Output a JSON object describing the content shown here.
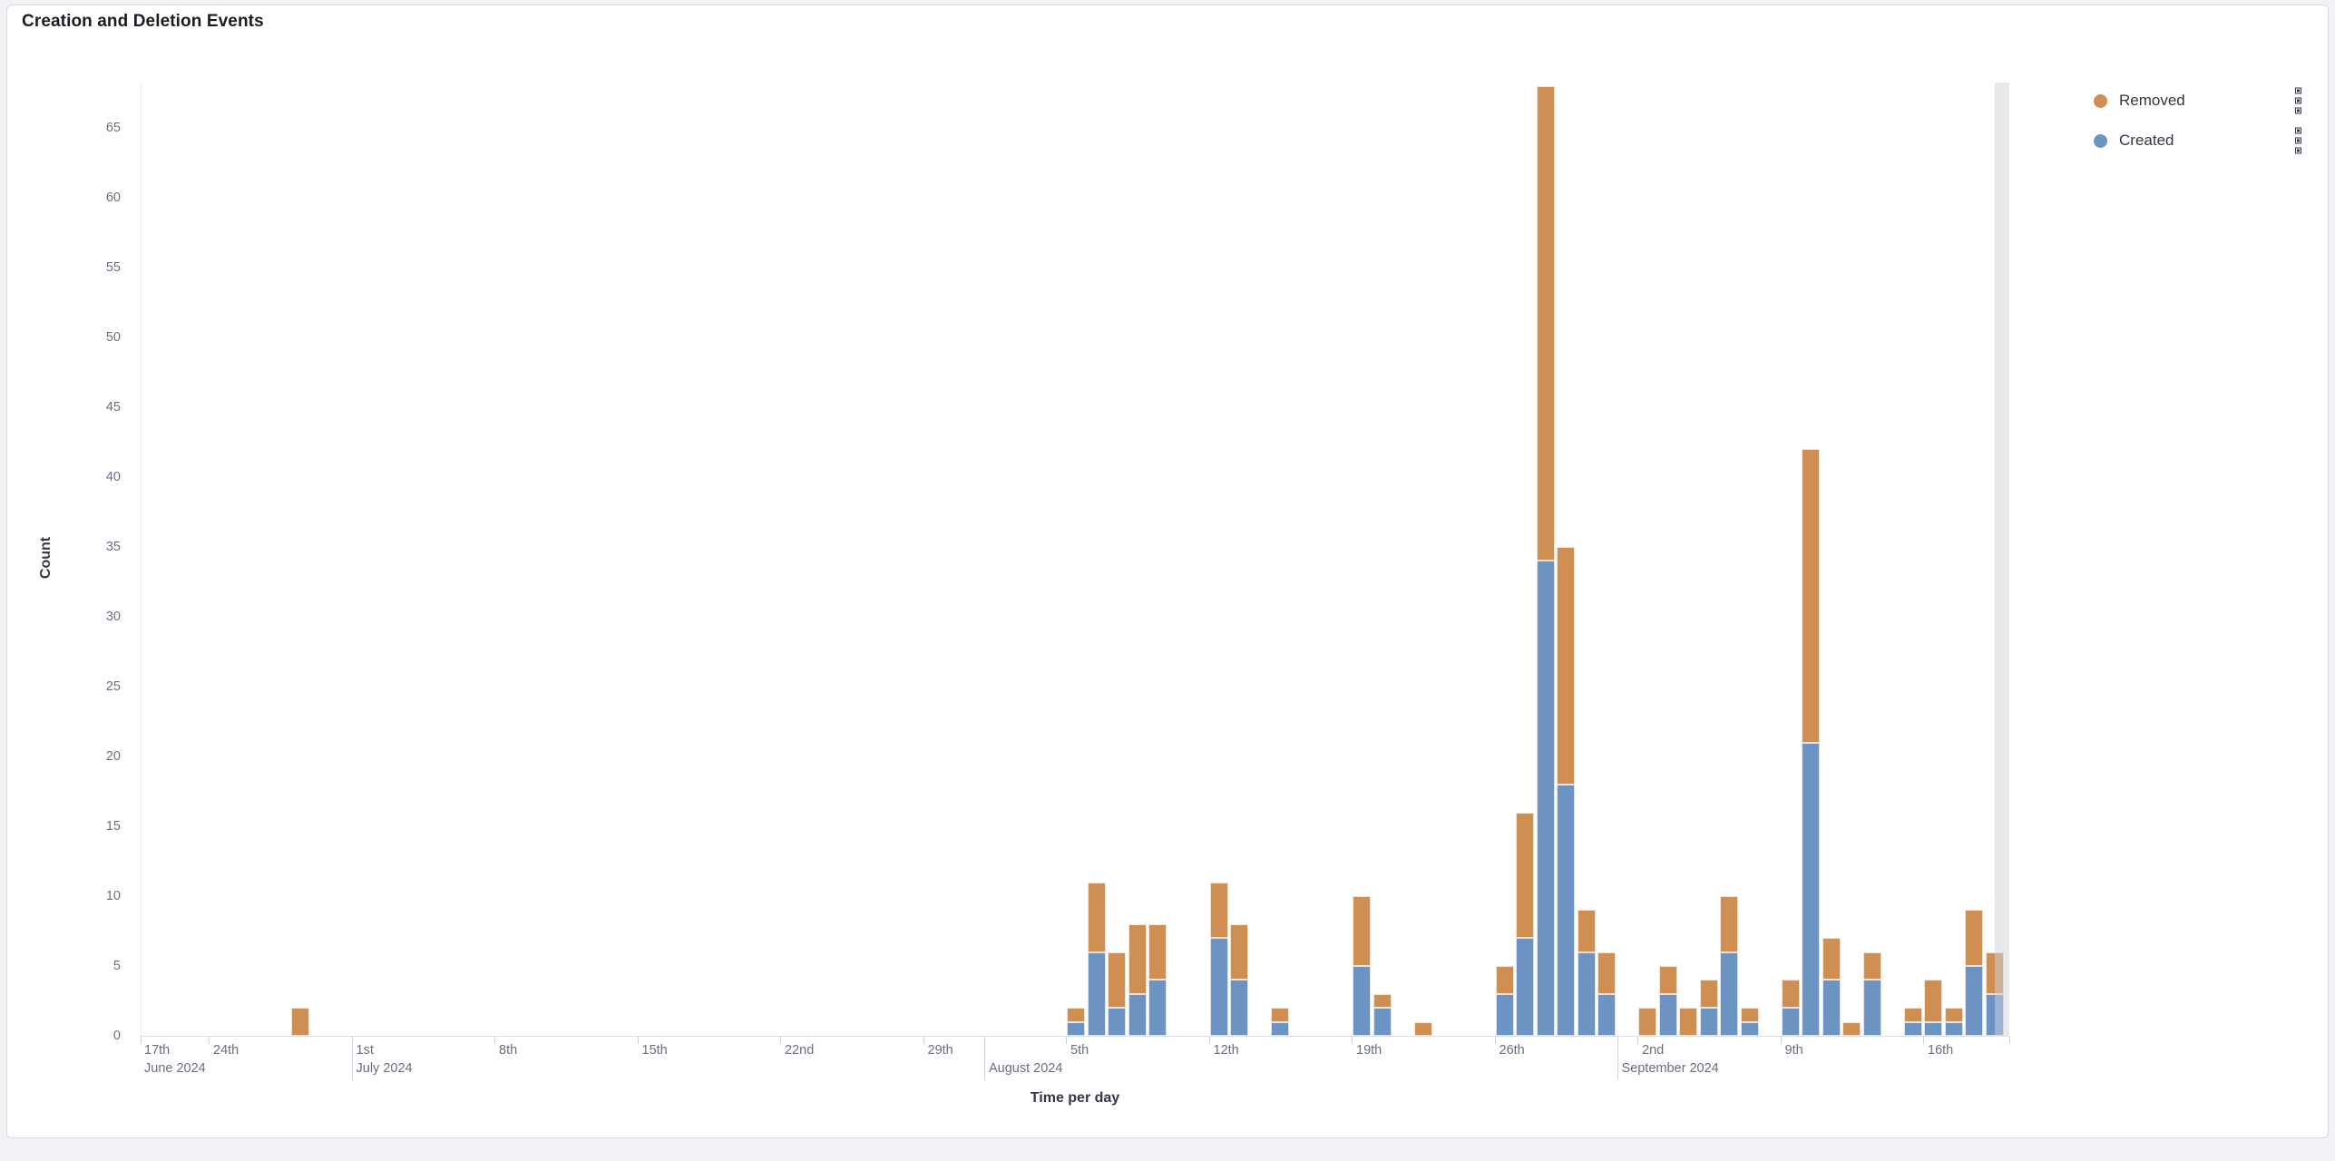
{
  "panel": {
    "title": "Creation and Deletion Events"
  },
  "legend": {
    "items": [
      {
        "label": "Removed",
        "color": "#cf8e52",
        "action_icon": "legend-action-icon"
      },
      {
        "label": "Created",
        "color": "#6d93c2",
        "action_icon": "legend-action-icon"
      }
    ]
  },
  "chart_data": {
    "type": "bar",
    "stacked": true,
    "title": "Creation and Deletion Events",
    "xlabel": "Time per day",
    "ylabel": "Count",
    "ylim": [
      0,
      68
    ],
    "grid": false,
    "legend_position": "right",
    "y_ticks": [
      0,
      5,
      10,
      15,
      20,
      25,
      30,
      35,
      40,
      45,
      50,
      55,
      60,
      65
    ],
    "series_colors": {
      "Created": "#6d93c2",
      "Removed": "#cf8e52"
    },
    "stack_order_bottom_to_top": [
      "Created",
      "Removed"
    ],
    "x_axis": {
      "pinned_first_label": {
        "label": "17th",
        "sub": "June 2024"
      },
      "week_ticks": [
        {
          "day": 0,
          "label": "24th"
        },
        {
          "day": 7,
          "label": "1st"
        },
        {
          "day": 14,
          "label": "8th"
        },
        {
          "day": 21,
          "label": "15th"
        },
        {
          "day": 28,
          "label": "22nd"
        },
        {
          "day": 35,
          "label": "29th"
        },
        {
          "day": 42,
          "label": "5th"
        },
        {
          "day": 49,
          "label": "12th"
        },
        {
          "day": 56,
          "label": "19th"
        },
        {
          "day": 63,
          "label": "26th"
        },
        {
          "day": 70,
          "label": "2nd"
        },
        {
          "day": 77,
          "label": "9th"
        },
        {
          "day": 84,
          "label": "16th"
        }
      ],
      "month_separators": [
        {
          "day": 7,
          "label": "July 2024"
        },
        {
          "day": 38,
          "label": "August 2024"
        },
        {
          "day": 69,
          "label": "September 2024"
        }
      ]
    },
    "bars": [
      {
        "date": "2024-06-28",
        "day": 4,
        "created": 0,
        "removed": 2
      },
      {
        "date": "2024-08-05",
        "day": 42,
        "created": 1,
        "removed": 1
      },
      {
        "date": "2024-08-06",
        "day": 43,
        "created": 6,
        "removed": 5
      },
      {
        "date": "2024-08-07",
        "day": 44,
        "created": 2,
        "removed": 4
      },
      {
        "date": "2024-08-08",
        "day": 45,
        "created": 3,
        "removed": 5
      },
      {
        "date": "2024-08-09",
        "day": 46,
        "created": 4,
        "removed": 4
      },
      {
        "date": "2024-08-12",
        "day": 49,
        "created": 7,
        "removed": 4
      },
      {
        "date": "2024-08-13",
        "day": 50,
        "created": 4,
        "removed": 4
      },
      {
        "date": "2024-08-15",
        "day": 52,
        "created": 1,
        "removed": 1
      },
      {
        "date": "2024-08-19",
        "day": 56,
        "created": 5,
        "removed": 5
      },
      {
        "date": "2024-08-20",
        "day": 57,
        "created": 2,
        "removed": 1
      },
      {
        "date": "2024-08-22",
        "day": 59,
        "created": 0,
        "removed": 1
      },
      {
        "date": "2024-08-26",
        "day": 63,
        "created": 3,
        "removed": 2
      },
      {
        "date": "2024-08-27",
        "day": 64,
        "created": 7,
        "removed": 9
      },
      {
        "date": "2024-08-28",
        "day": 65,
        "created": 34,
        "removed": 34
      },
      {
        "date": "2024-08-29",
        "day": 66,
        "created": 18,
        "removed": 17
      },
      {
        "date": "2024-08-30",
        "day": 67,
        "created": 6,
        "removed": 3
      },
      {
        "date": "2024-08-31",
        "day": 68,
        "created": 3,
        "removed": 3
      },
      {
        "date": "2024-09-02",
        "day": 70,
        "created": 0,
        "removed": 2
      },
      {
        "date": "2024-09-03",
        "day": 71,
        "created": 3,
        "removed": 2
      },
      {
        "date": "2024-09-04",
        "day": 72,
        "created": 0,
        "removed": 2
      },
      {
        "date": "2024-09-05",
        "day": 73,
        "created": 2,
        "removed": 2
      },
      {
        "date": "2024-09-06",
        "day": 74,
        "created": 6,
        "removed": 4
      },
      {
        "date": "2024-09-07",
        "day": 75,
        "created": 1,
        "removed": 1
      },
      {
        "date": "2024-09-09",
        "day": 77,
        "created": 2,
        "removed": 2
      },
      {
        "date": "2024-09-10",
        "day": 78,
        "created": 21,
        "removed": 21
      },
      {
        "date": "2024-09-11",
        "day": 79,
        "created": 4,
        "removed": 3
      },
      {
        "date": "2024-09-12",
        "day": 80,
        "created": 0,
        "removed": 1
      },
      {
        "date": "2024-09-13",
        "day": 81,
        "created": 4,
        "removed": 2
      },
      {
        "date": "2024-09-15",
        "day": 83,
        "created": 1,
        "removed": 1
      },
      {
        "date": "2024-09-16",
        "day": 84,
        "created": 1,
        "removed": 3
      },
      {
        "date": "2024-09-17",
        "day": 85,
        "created": 1,
        "removed": 1
      },
      {
        "date": "2024-09-18",
        "day": 86,
        "created": 5,
        "removed": 4
      },
      {
        "date": "2024-09-19",
        "day": 87,
        "created": 3,
        "removed": 3
      }
    ],
    "annotations": {
      "right_edge_partial_bucket_band": true,
      "band_color": "#d0d3db"
    }
  }
}
